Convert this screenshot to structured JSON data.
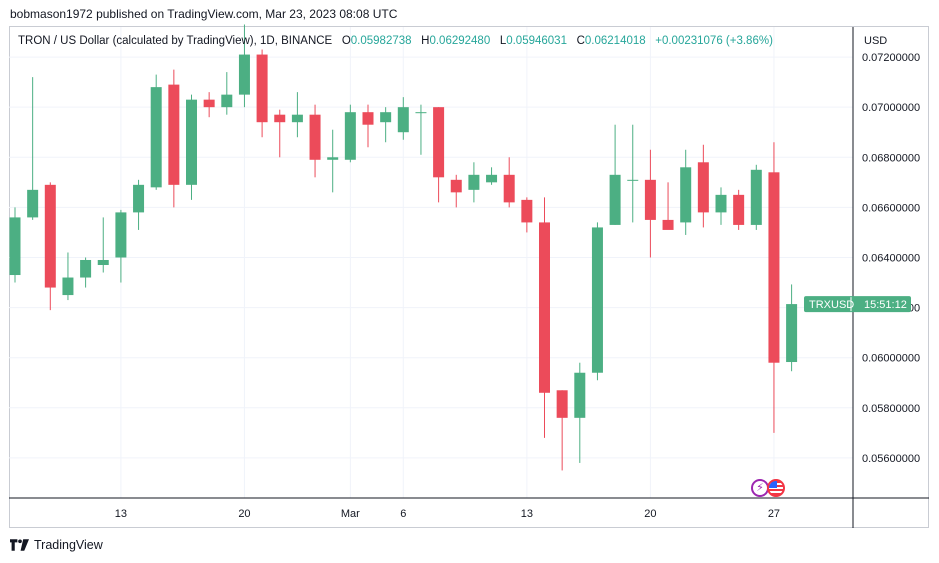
{
  "header": {
    "published": "bobmason1972 published on TradingView.com, Mar 23, 2023 08:08 UTC"
  },
  "legend": {
    "symbol": "TRON / US Dollar (calculated by TradingView), 1D, BINANCE",
    "o_label": "O",
    "o_value": "0.05982738",
    "h_label": "H",
    "h_value": "0.06292480",
    "l_label": "L",
    "l_value": "0.05946031",
    "c_label": "C",
    "c_value": "0.06214018",
    "change": "+0.00231076 (+3.86%)"
  },
  "axis": {
    "currency": "USD",
    "price_tag": {
      "symbol": "TRXUSD",
      "countdown": "15:51:12"
    }
  },
  "footer": {
    "brand": "TradingView"
  },
  "colors": {
    "up": "#26a69a",
    "up_fill": "#4caf83",
    "down": "#f23645",
    "down_fill": "#ec4b5a",
    "grid": "#f0f3fa",
    "text": "#131722"
  },
  "chart_data": {
    "type": "candlestick",
    "title": "TRON / US Dollar (calculated by TradingView), 1D, BINANCE",
    "ylabel": "USD",
    "ylim": [
      0.0544,
      0.0732
    ],
    "yticks": [
      "0.05600000",
      "0.05800000",
      "0.06000000",
      "0.06200000",
      "0.06400000",
      "0.06600000",
      "0.06800000",
      "0.07000000",
      "0.07200000"
    ],
    "xticks": [
      {
        "day": 13,
        "label": "13"
      },
      {
        "day": 20,
        "label": "20"
      },
      {
        "day": 26,
        "label": "Mar"
      },
      {
        "day": 29,
        "label": "6"
      },
      {
        "day": 36,
        "label": "13"
      },
      {
        "day": 43,
        "label": "20"
      },
      {
        "day": 50,
        "label": "27"
      }
    ],
    "candles": [
      {
        "day": 7,
        "o": 0.0633,
        "h": 0.066,
        "l": 0.063,
        "c": 0.0656
      },
      {
        "day": 8,
        "o": 0.0656,
        "h": 0.0712,
        "l": 0.0655,
        "c": 0.0667
      },
      {
        "day": 9,
        "o": 0.0669,
        "h": 0.067,
        "l": 0.0619,
        "c": 0.0628
      },
      {
        "day": 10,
        "o": 0.0625,
        "h": 0.0642,
        "l": 0.0623,
        "c": 0.0632
      },
      {
        "day": 11,
        "o": 0.0632,
        "h": 0.064,
        "l": 0.0628,
        "c": 0.0639
      },
      {
        "day": 12,
        "o": 0.0637,
        "h": 0.0656,
        "l": 0.0634,
        "c": 0.0639
      },
      {
        "day": 13,
        "o": 0.064,
        "h": 0.0659,
        "l": 0.063,
        "c": 0.0658
      },
      {
        "day": 14,
        "o": 0.0658,
        "h": 0.0671,
        "l": 0.0651,
        "c": 0.0669
      },
      {
        "day": 15,
        "o": 0.0668,
        "h": 0.0713,
        "l": 0.0667,
        "c": 0.0708
      },
      {
        "day": 16,
        "o": 0.0709,
        "h": 0.0715,
        "l": 0.066,
        "c": 0.0669
      },
      {
        "day": 17,
        "o": 0.0669,
        "h": 0.0705,
        "l": 0.0663,
        "c": 0.0703
      },
      {
        "day": 18,
        "o": 0.0703,
        "h": 0.0706,
        "l": 0.0696,
        "c": 0.07
      },
      {
        "day": 19,
        "o": 0.07,
        "h": 0.0714,
        "l": 0.0697,
        "c": 0.0705
      },
      {
        "day": 20,
        "o": 0.0705,
        "h": 0.0733,
        "l": 0.07,
        "c": 0.0721
      },
      {
        "day": 21,
        "o": 0.0721,
        "h": 0.0723,
        "l": 0.0688,
        "c": 0.0694
      },
      {
        "day": 22,
        "o": 0.0697,
        "h": 0.0699,
        "l": 0.068,
        "c": 0.0694
      },
      {
        "day": 23,
        "o": 0.0694,
        "h": 0.0706,
        "l": 0.0688,
        "c": 0.0697
      },
      {
        "day": 24,
        "o": 0.0697,
        "h": 0.0701,
        "l": 0.0672,
        "c": 0.0679
      },
      {
        "day": 25,
        "o": 0.0679,
        "h": 0.0691,
        "l": 0.0666,
        "c": 0.068
      },
      {
        "day": 26,
        "o": 0.0679,
        "h": 0.0701,
        "l": 0.0678,
        "c": 0.0698
      },
      {
        "day": 27,
        "o": 0.0698,
        "h": 0.0701,
        "l": 0.0684,
        "c": 0.0693
      },
      {
        "day": 28,
        "o": 0.0694,
        "h": 0.07,
        "l": 0.0686,
        "c": 0.0698
      },
      {
        "day": 29,
        "o": 0.069,
        "h": 0.0704,
        "l": 0.0687,
        "c": 0.07
      },
      {
        "day": 30,
        "o": 0.0698,
        "h": 0.0701,
        "l": 0.0681,
        "c": 0.0698
      },
      {
        "day": 31,
        "o": 0.07,
        "h": 0.07,
        "l": 0.0662,
        "c": 0.0672
      },
      {
        "day": 32,
        "o": 0.0671,
        "h": 0.0673,
        "l": 0.066,
        "c": 0.0666
      },
      {
        "day": 33,
        "o": 0.0667,
        "h": 0.0678,
        "l": 0.0662,
        "c": 0.0673
      },
      {
        "day": 34,
        "o": 0.067,
        "h": 0.0676,
        "l": 0.0669,
        "c": 0.0673
      },
      {
        "day": 35,
        "o": 0.0673,
        "h": 0.068,
        "l": 0.066,
        "c": 0.0662
      },
      {
        "day": 36,
        "o": 0.0663,
        "h": 0.0664,
        "l": 0.065,
        "c": 0.0654
      },
      {
        "day": 37,
        "o": 0.0654,
        "h": 0.0664,
        "l": 0.0568,
        "c": 0.0586
      },
      {
        "day": 38,
        "o": 0.0587,
        "h": 0.0587,
        "l": 0.0555,
        "c": 0.0576
      },
      {
        "day": 39,
        "o": 0.0576,
        "h": 0.0598,
        "l": 0.0558,
        "c": 0.0594
      },
      {
        "day": 40,
        "o": 0.0594,
        "h": 0.0654,
        "l": 0.0591,
        "c": 0.0652
      },
      {
        "day": 41,
        "o": 0.0653,
        "h": 0.0693,
        "l": 0.0653,
        "c": 0.0673
      },
      {
        "day": 42,
        "o": 0.0671,
        "h": 0.0693,
        "l": 0.0654,
        "c": 0.0671
      },
      {
        "day": 43,
        "o": 0.0671,
        "h": 0.0683,
        "l": 0.064,
        "c": 0.0655
      },
      {
        "day": 44,
        "o": 0.0655,
        "h": 0.067,
        "l": 0.0652,
        "c": 0.0651
      },
      {
        "day": 45,
        "o": 0.0654,
        "h": 0.0683,
        "l": 0.0649,
        "c": 0.0676
      },
      {
        "day": 46,
        "o": 0.0678,
        "h": 0.0685,
        "l": 0.0652,
        "c": 0.0658
      },
      {
        "day": 47,
        "o": 0.0658,
        "h": 0.0668,
        "l": 0.0653,
        "c": 0.0665
      },
      {
        "day": 48,
        "o": 0.0665,
        "h": 0.0667,
        "l": 0.0651,
        "c": 0.0653
      },
      {
        "day": 49,
        "o": 0.0653,
        "h": 0.0677,
        "l": 0.0651,
        "c": 0.0675
      },
      {
        "day": 50,
        "o": 0.0674,
        "h": 0.0686,
        "l": 0.057,
        "c": 0.0598
      },
      {
        "day": 51,
        "o": 0.05982738,
        "h": 0.0629248,
        "l": 0.05946031,
        "c": 0.06214018
      }
    ],
    "last_price": 0.06214018
  }
}
